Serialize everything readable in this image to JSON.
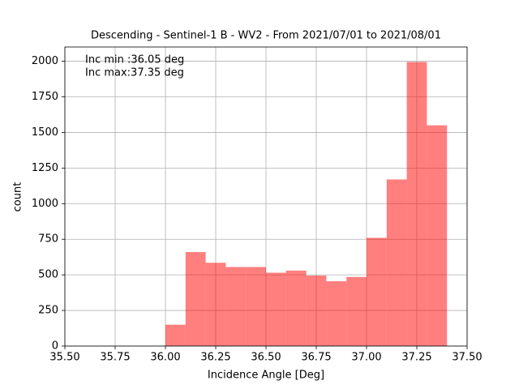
{
  "chart_data": {
    "type": "histogram",
    "title": "Descending - Sentinel-1 B - WV2 - From 2021/07/01 to 2021/08/01",
    "x_label": "Incidence Angle [Deg]",
    "y_label": "count",
    "annotations": [
      "Inc min :36.05 deg",
      "Inc max:37.35 deg"
    ],
    "bins": [
      36.0,
      36.1,
      36.2,
      36.3,
      36.4,
      36.5,
      36.6,
      36.7,
      36.8,
      36.9,
      37.0,
      37.1,
      37.2,
      37.3,
      37.4
    ],
    "values": [
      150,
      660,
      585,
      555,
      555,
      515,
      530,
      495,
      455,
      485,
      760,
      1170,
      1995,
      1550
    ],
    "color": "#ff0000",
    "alpha": 0.5,
    "xlim": [
      35.5,
      37.5
    ],
    "xticks": [
      {
        "value": 35.5,
        "label": "35.50"
      },
      {
        "value": 35.75,
        "label": "35.75"
      },
      {
        "value": 36.0,
        "label": "36.00"
      },
      {
        "value": 36.25,
        "label": "36.25"
      },
      {
        "value": 36.5,
        "label": "36.50"
      },
      {
        "value": 36.75,
        "label": "36.75"
      },
      {
        "value": 37.0,
        "label": "37.00"
      },
      {
        "value": 37.25,
        "label": "37.25"
      },
      {
        "value": 37.5,
        "label": "37.50"
      }
    ],
    "ylim": [
      0,
      2100
    ],
    "yticks": [
      0,
      250,
      500,
      750,
      1000,
      1250,
      1500,
      1750,
      2000
    ],
    "grid": true
  }
}
